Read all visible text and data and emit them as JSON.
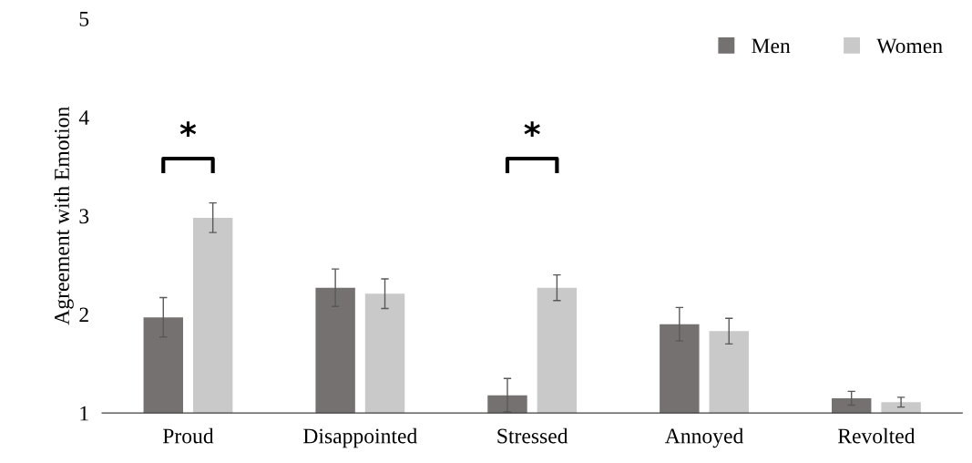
{
  "chart_data": {
    "type": "bar",
    "ylabel": "Agreement with Emotion",
    "categories": [
      "Proud",
      "Disappointed",
      "Stressed",
      "Annoyed",
      "Revolted"
    ],
    "series": [
      {
        "name": "Men",
        "color": "#767171",
        "values": [
          1.97,
          2.27,
          1.18,
          1.9,
          1.15
        ],
        "errors": [
          0.2,
          0.19,
          0.17,
          0.17,
          0.07
        ]
      },
      {
        "name": "Women",
        "color": "#c9c9c9",
        "values": [
          2.98,
          2.21,
          2.27,
          1.83,
          1.11
        ],
        "errors": [
          0.15,
          0.15,
          0.13,
          0.13,
          0.05
        ]
      }
    ],
    "ylim": [
      1,
      5
    ],
    "yticks": [
      1,
      2,
      3,
      4,
      5
    ],
    "grid": false,
    "legend": "top right",
    "annotations": [
      "*",
      "*"
    ]
  }
}
